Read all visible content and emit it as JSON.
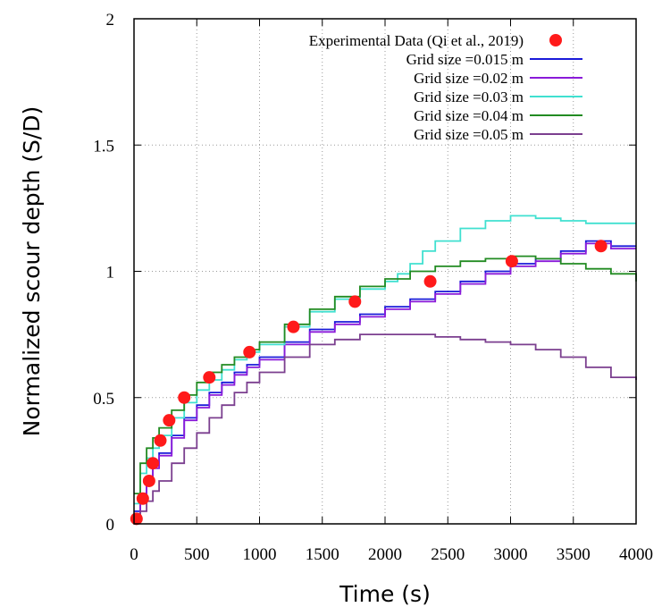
{
  "chart_data": {
    "type": "line",
    "xlabel": "Time (s)",
    "ylabel": "Normalized scour depth (S/D)",
    "xlim": [
      0,
      4000
    ],
    "ylim": [
      0,
      2
    ],
    "xticks": [
      "0",
      "500",
      "1000",
      "1500",
      "2000",
      "2500",
      "3000",
      "3500",
      "4000"
    ],
    "yticks": [
      "0",
      "0.5",
      "1",
      "1.5",
      "2"
    ],
    "grid": true,
    "legend_position": "top-right",
    "series": [
      {
        "name": "Experimental Data (Qi et al., 2019)",
        "kind": "scatter",
        "color": "#ff1a1a",
        "x": [
          20,
          70,
          120,
          150,
          210,
          280,
          400,
          600,
          920,
          1270,
          1760,
          2360,
          3010,
          3720
        ],
        "y": [
          0.02,
          0.1,
          0.17,
          0.24,
          0.33,
          0.41,
          0.5,
          0.58,
          0.68,
          0.78,
          0.88,
          0.96,
          1.04,
          1.1
        ]
      },
      {
        "name": "Grid size =0.015 m",
        "kind": "line",
        "color": "#1a1ad9",
        "x": [
          0,
          50,
          100,
          150,
          200,
          300,
          400,
          500,
          600,
          700,
          800,
          900,
          1000,
          1200,
          1400,
          1600,
          1800,
          2000,
          2200,
          2400,
          2600,
          2800,
          3000,
          3200,
          3400,
          3600,
          3700,
          3800,
          4000
        ],
        "y": [
          0.05,
          0.12,
          0.18,
          0.23,
          0.28,
          0.35,
          0.42,
          0.47,
          0.52,
          0.56,
          0.6,
          0.63,
          0.66,
          0.72,
          0.77,
          0.8,
          0.83,
          0.86,
          0.89,
          0.92,
          0.96,
          1.0,
          1.03,
          1.05,
          1.08,
          1.12,
          1.12,
          1.1,
          1.1
        ]
      },
      {
        "name": "Grid size =0.02 m",
        "kind": "line",
        "color": "#8a1ad9",
        "x": [
          0,
          50,
          100,
          150,
          200,
          300,
          400,
          500,
          600,
          700,
          800,
          900,
          1000,
          1200,
          1400,
          1600,
          1800,
          2000,
          2200,
          2400,
          2600,
          2800,
          3000,
          3200,
          3400,
          3600,
          3700,
          3800,
          4000
        ],
        "y": [
          0.04,
          0.11,
          0.17,
          0.22,
          0.27,
          0.34,
          0.41,
          0.46,
          0.51,
          0.55,
          0.59,
          0.62,
          0.65,
          0.71,
          0.76,
          0.79,
          0.82,
          0.85,
          0.88,
          0.91,
          0.95,
          0.99,
          1.02,
          1.04,
          1.07,
          1.11,
          1.11,
          1.09,
          1.09
        ]
      },
      {
        "name": "Grid size =0.03 m",
        "kind": "line",
        "color": "#40e0d0",
        "x": [
          0,
          50,
          100,
          150,
          200,
          300,
          400,
          500,
          600,
          700,
          800,
          900,
          1000,
          1200,
          1400,
          1600,
          1800,
          2000,
          2100,
          2200,
          2300,
          2400,
          2600,
          2800,
          3000,
          3200,
          3400,
          3600,
          3800,
          4000
        ],
        "y": [
          0.08,
          0.2,
          0.26,
          0.3,
          0.35,
          0.42,
          0.48,
          0.53,
          0.57,
          0.61,
          0.65,
          0.68,
          0.71,
          0.78,
          0.84,
          0.89,
          0.93,
          0.96,
          0.99,
          1.03,
          1.08,
          1.12,
          1.17,
          1.2,
          1.22,
          1.21,
          1.2,
          1.19,
          1.19,
          1.19
        ]
      },
      {
        "name": "Grid size =0.04 m",
        "kind": "line",
        "color": "#228b22",
        "x": [
          0,
          50,
          100,
          150,
          200,
          300,
          400,
          500,
          600,
          700,
          800,
          900,
          1000,
          1200,
          1400,
          1600,
          1800,
          2000,
          2200,
          2400,
          2600,
          2800,
          3000,
          3200,
          3400,
          3600,
          3800,
          4000
        ],
        "y": [
          0.12,
          0.24,
          0.3,
          0.34,
          0.38,
          0.45,
          0.51,
          0.56,
          0.6,
          0.63,
          0.66,
          0.69,
          0.72,
          0.79,
          0.85,
          0.9,
          0.94,
          0.97,
          1.0,
          1.02,
          1.04,
          1.05,
          1.06,
          1.05,
          1.03,
          1.01,
          0.99,
          0.96
        ]
      },
      {
        "name": "Grid size =0.05 m",
        "kind": "line",
        "color": "#7b3f8f",
        "x": [
          0,
          50,
          100,
          150,
          200,
          300,
          400,
          500,
          600,
          700,
          800,
          900,
          1000,
          1200,
          1400,
          1600,
          1800,
          2000,
          2200,
          2400,
          2600,
          2800,
          3000,
          3200,
          3400,
          3600,
          3800,
          4000
        ],
        "y": [
          0.02,
          0.05,
          0.09,
          0.13,
          0.17,
          0.24,
          0.3,
          0.36,
          0.42,
          0.47,
          0.52,
          0.56,
          0.6,
          0.66,
          0.71,
          0.73,
          0.75,
          0.75,
          0.75,
          0.74,
          0.73,
          0.72,
          0.71,
          0.69,
          0.66,
          0.62,
          0.58,
          0.57
        ]
      }
    ]
  }
}
